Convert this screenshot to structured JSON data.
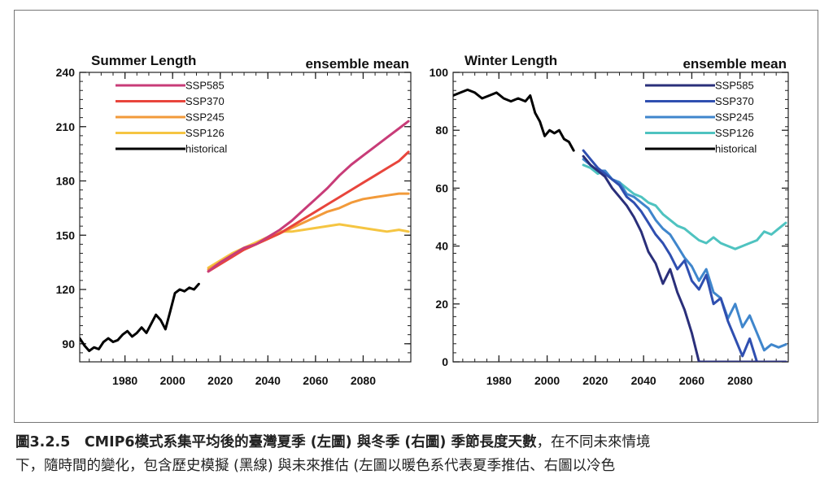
{
  "chart_data": [
    {
      "type": "line",
      "title": "Summer Length",
      "subtitle": "ensemble mean",
      "xlim": [
        1961,
        2100
      ],
      "ylim": [
        80,
        240
      ],
      "xticks": [
        1980,
        2000,
        2020,
        2040,
        2060,
        2080
      ],
      "yticks": [
        90,
        120,
        150,
        180,
        210,
        240
      ],
      "legend_position": "top-left",
      "series": [
        {
          "name": "SSP585",
          "color": "#c83c78",
          "x": [
            2015,
            2020,
            2025,
            2030,
            2035,
            2040,
            2045,
            2050,
            2055,
            2060,
            2065,
            2070,
            2075,
            2080,
            2085,
            2090,
            2095,
            2099
          ],
          "y": [
            130,
            135,
            139,
            143,
            145,
            149,
            153,
            158,
            164,
            170,
            176,
            183,
            189,
            194,
            199,
            204,
            209,
            213
          ]
        },
        {
          "name": "SSP370",
          "color": "#e8453c",
          "x": [
            2015,
            2020,
            2025,
            2030,
            2035,
            2040,
            2045,
            2050,
            2055,
            2060,
            2065,
            2070,
            2075,
            2080,
            2085,
            2090,
            2095,
            2099
          ],
          "y": [
            130,
            134,
            138,
            142,
            145,
            148,
            151,
            155,
            159,
            163,
            167,
            171,
            175,
            179,
            183,
            187,
            191,
            196
          ]
        },
        {
          "name": "SSP245",
          "color": "#f29a3a",
          "x": [
            2015,
            2020,
            2025,
            2030,
            2035,
            2040,
            2045,
            2050,
            2055,
            2060,
            2065,
            2070,
            2075,
            2080,
            2085,
            2090,
            2095,
            2099
          ],
          "y": [
            131,
            135,
            139,
            142,
            145,
            148,
            151,
            154,
            157,
            160,
            163,
            165,
            168,
            170,
            171,
            172,
            173,
            173
          ]
        },
        {
          "name": "SSP126",
          "color": "#f5c542",
          "x": [
            2015,
            2020,
            2025,
            2030,
            2035,
            2040,
            2045,
            2050,
            2055,
            2060,
            2065,
            2070,
            2075,
            2080,
            2085,
            2090,
            2095,
            2099
          ],
          "y": [
            132,
            136,
            140,
            143,
            146,
            149,
            152,
            152,
            153,
            154,
            155,
            156,
            155,
            154,
            153,
            152,
            153,
            152
          ]
        },
        {
          "name": "historical",
          "color": "#000000",
          "x": [
            1961,
            1963,
            1965,
            1967,
            1969,
            1971,
            1973,
            1975,
            1977,
            1979,
            1981,
            1983,
            1985,
            1987,
            1989,
            1991,
            1993,
            1995,
            1997,
            1999,
            2001,
            2003,
            2005,
            2007,
            2009,
            2011
          ],
          "y": [
            93,
            89,
            86,
            88,
            87,
            91,
            93,
            91,
            92,
            95,
            97,
            94,
            96,
            99,
            96,
            101,
            106,
            103,
            98,
            108,
            118,
            120,
            119,
            121,
            120,
            123
          ]
        }
      ]
    },
    {
      "type": "line",
      "title": "Winter Length",
      "subtitle": "ensemble mean",
      "xlim": [
        1961,
        2100
      ],
      "ylim": [
        0,
        100
      ],
      "xticks": [
        1980,
        2000,
        2020,
        2040,
        2060,
        2080
      ],
      "yticks": [
        0,
        20,
        40,
        60,
        80,
        100
      ],
      "legend_position": "top-right",
      "series": [
        {
          "name": "SSP585",
          "color": "#2a2f7a",
          "x": [
            2015,
            2018,
            2021,
            2024,
            2027,
            2030,
            2033,
            2036,
            2039,
            2042,
            2045,
            2048,
            2051,
            2054,
            2057,
            2060,
            2063,
            2066,
            2070,
            2075,
            2080,
            2085,
            2090,
            2095,
            2099
          ],
          "y": [
            71,
            68,
            66,
            64,
            60,
            57,
            54,
            50,
            45,
            38,
            34,
            27,
            32,
            24,
            18,
            10,
            0,
            0,
            0,
            0,
            0,
            0,
            0,
            0,
            0
          ]
        },
        {
          "name": "SSP370",
          "color": "#2f4fb0",
          "x": [
            2015,
            2018,
            2021,
            2024,
            2027,
            2030,
            2033,
            2036,
            2039,
            2042,
            2045,
            2048,
            2051,
            2054,
            2057,
            2060,
            2063,
            2066,
            2069,
            2072,
            2075,
            2078,
            2081,
            2084,
            2087,
            2090,
            2093,
            2096,
            2099
          ],
          "y": [
            73,
            70,
            67,
            65,
            63,
            61,
            57,
            55,
            52,
            48,
            44,
            41,
            37,
            32,
            35,
            28,
            25,
            30,
            20,
            22,
            14,
            8,
            2,
            8,
            0,
            0,
            0,
            0,
            0
          ]
        },
        {
          "name": "SSP245",
          "color": "#3f86cc",
          "x": [
            2015,
            2018,
            2021,
            2024,
            2027,
            2030,
            2033,
            2036,
            2039,
            2042,
            2045,
            2048,
            2051,
            2054,
            2057,
            2060,
            2063,
            2066,
            2069,
            2072,
            2075,
            2078,
            2081,
            2084,
            2087,
            2090,
            2093,
            2096,
            2099
          ],
          "y": [
            70,
            68,
            66,
            66,
            63,
            62,
            58,
            57,
            55,
            53,
            49,
            46,
            44,
            40,
            36,
            33,
            28,
            32,
            24,
            22,
            15,
            20,
            12,
            16,
            10,
            4,
            6,
            5,
            6
          ]
        },
        {
          "name": "SSP126",
          "color": "#4fc3c0",
          "x": [
            2015,
            2018,
            2021,
            2024,
            2027,
            2030,
            2033,
            2036,
            2039,
            2042,
            2045,
            2048,
            2051,
            2054,
            2057,
            2060,
            2063,
            2066,
            2069,
            2072,
            2075,
            2078,
            2081,
            2084,
            2087,
            2090,
            2093,
            2096,
            2099
          ],
          "y": [
            68,
            67,
            65,
            66,
            63,
            62,
            60,
            58,
            57,
            55,
            54,
            51,
            49,
            47,
            46,
            44,
            42,
            41,
            43,
            41,
            40,
            39,
            40,
            41,
            42,
            45,
            44,
            46,
            48
          ]
        },
        {
          "name": "historical",
          "color": "#000000",
          "x": [
            1961,
            1964,
            1967,
            1970,
            1973,
            1976,
            1979,
            1982,
            1985,
            1988,
            1991,
            1993,
            1995,
            1997,
            1999,
            2001,
            2003,
            2005,
            2007,
            2009,
            2011
          ],
          "y": [
            92,
            93,
            94,
            93,
            91,
            92,
            93,
            91,
            90,
            91,
            90,
            92,
            86,
            83,
            78,
            80,
            79,
            80,
            77,
            76,
            73
          ]
        }
      ]
    }
  ],
  "caption": {
    "label": "圖3.2.5　CMIP6模式系集平均後的臺灣夏季 (左圖) 與冬季 (右圖) 季節長度天數",
    "text_line1": "，在不同未來情境",
    "text_line2": "下，隨時間的變化，包含歷史模擬 (黑線) 與未來推估 (左圖以暖色系代表夏季推估、右圖以冷色"
  }
}
